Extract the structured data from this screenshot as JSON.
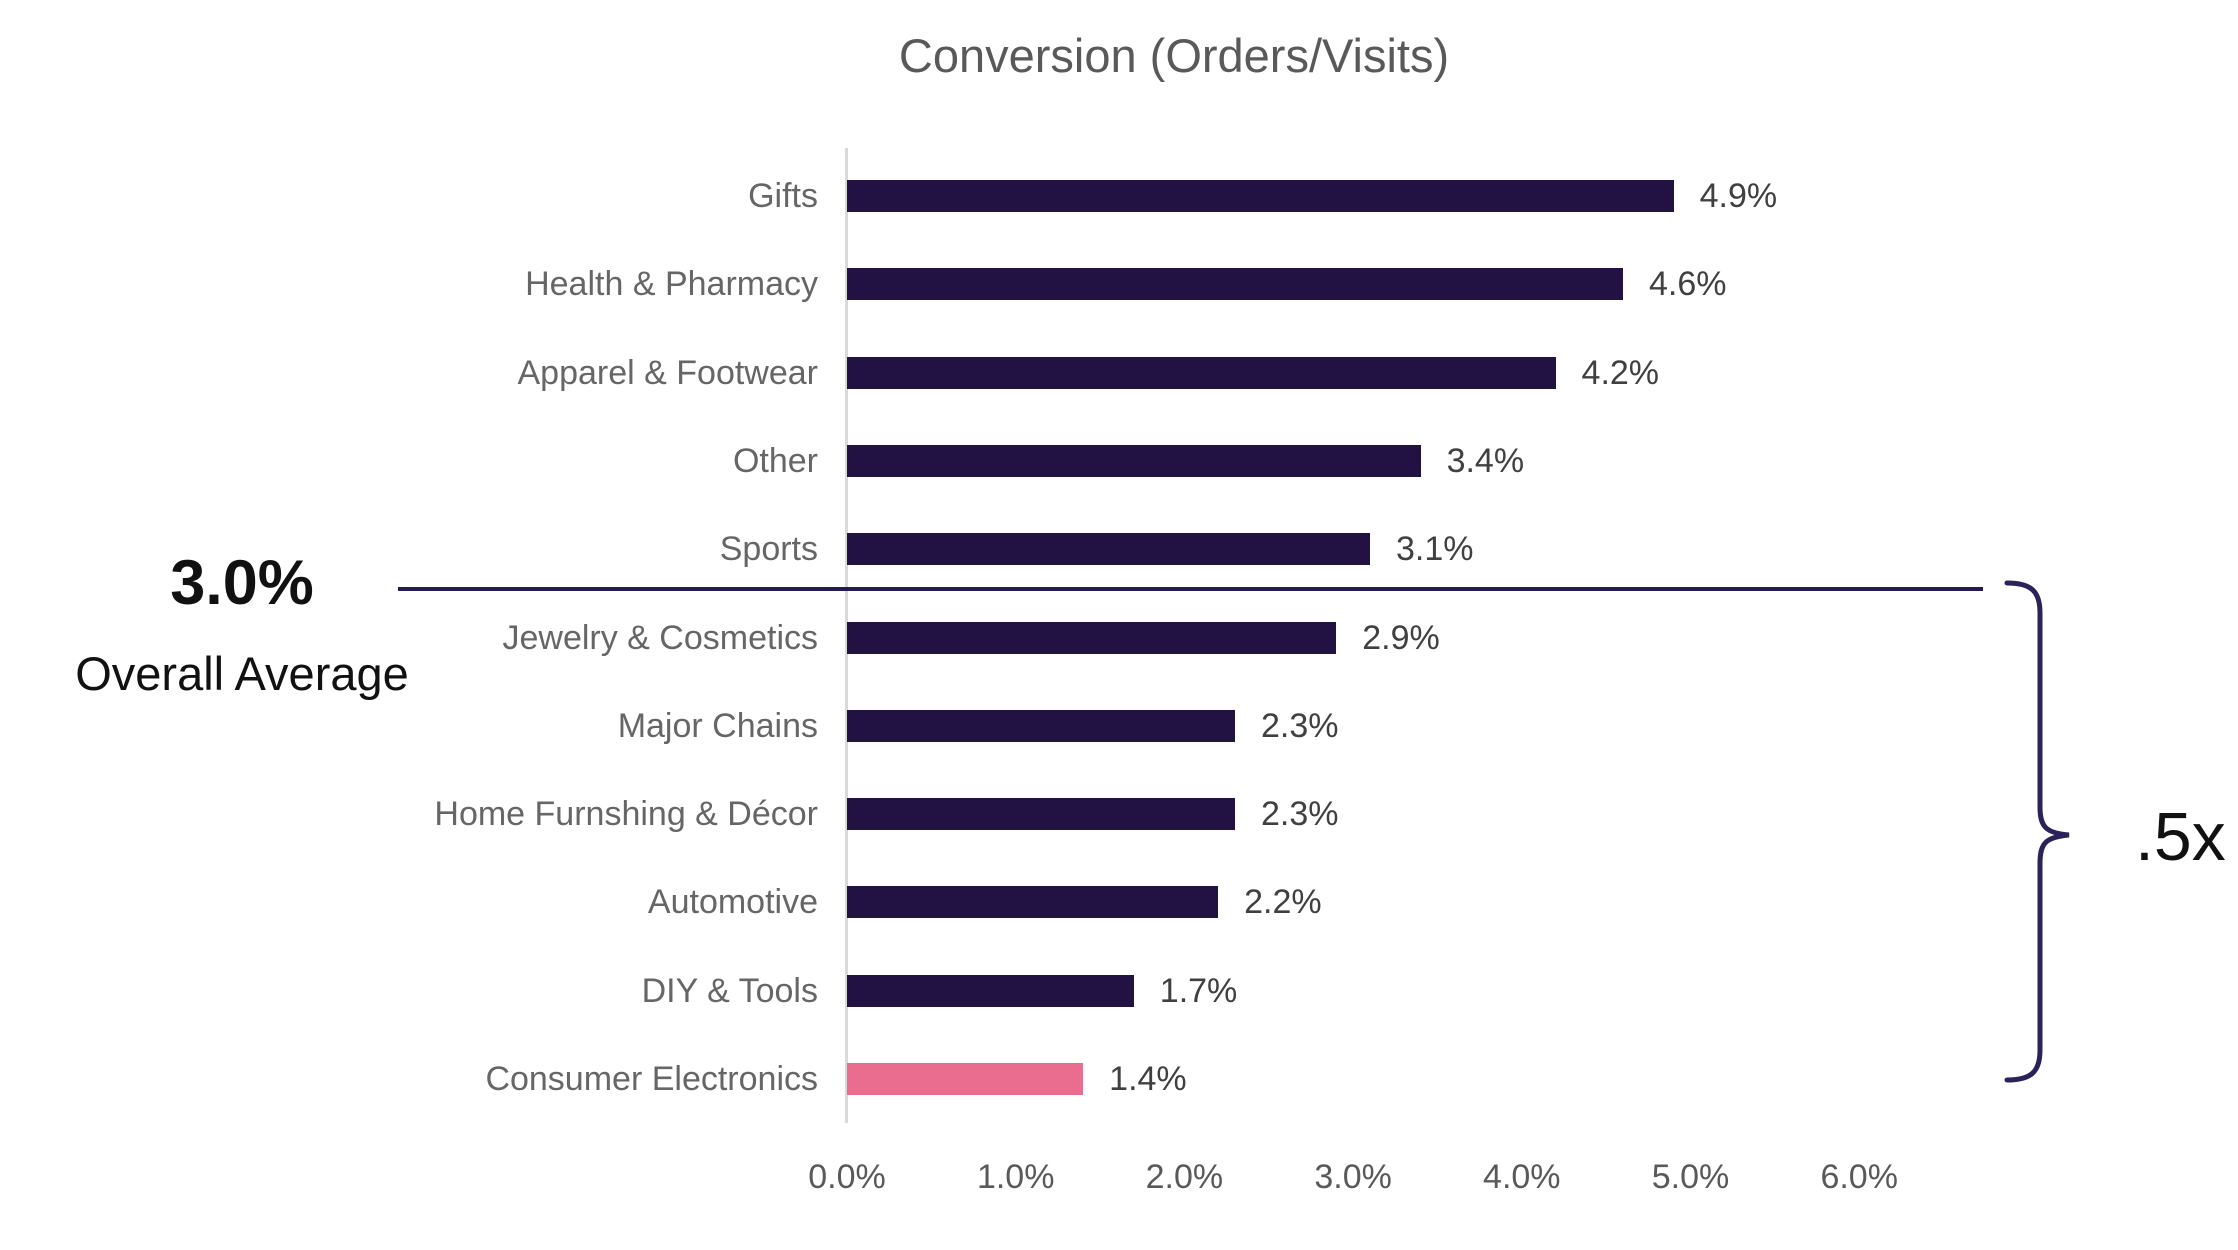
{
  "title": "Conversion (Orders/Visits)",
  "chart_data": {
    "type": "bar",
    "orientation": "horizontal",
    "title": "Conversion (Orders/Visits)",
    "categories": [
      "Gifts",
      "Health & Pharmacy",
      "Apparel & Footwear",
      "Other",
      "Sports",
      "Jewelry & Cosmetics",
      "Major Chains",
      "Home Furnshing & Décor",
      "Automotive",
      "DIY & Tools",
      "Consumer Electronics"
    ],
    "values": [
      4.9,
      4.6,
      4.2,
      3.4,
      3.1,
      2.9,
      2.3,
      2.3,
      2.2,
      1.7,
      1.4
    ],
    "value_labels": [
      "4.9%",
      "4.6%",
      "4.2%",
      "3.4%",
      "3.1%",
      "2.9%",
      "2.3%",
      "2.3%",
      "2.2%",
      "1.7%",
      "1.4%"
    ],
    "xlabel": "",
    "ylabel": "",
    "xlim": [
      0,
      6
    ],
    "x_ticks": [
      "0.0%",
      "1.0%",
      "2.0%",
      "3.0%",
      "4.0%",
      "5.0%",
      "6.0%"
    ],
    "x_tick_values": [
      0,
      1,
      2,
      3,
      4,
      5,
      6
    ],
    "grid": "off",
    "legend": "none",
    "highlight_category": "Consumer Electronics",
    "colors": {
      "bar": "#221244",
      "highlight_bar": "#ea6d90",
      "average_line": "#251a52",
      "brace": "#2c2159",
      "title_text": "#595959",
      "category_text": "#666666",
      "value_text": "#404040",
      "tick_text": "#595959",
      "axis_line": "#d9d9d9"
    },
    "annotations": {
      "average": {
        "value": "3.0%",
        "caption": "Overall Average",
        "at_value": 3.0
      },
      "brace": {
        "label": ".5x",
        "covers_categories": [
          "Jewelry & Cosmetics",
          "Major Chains",
          "Home Furnshing & Décor",
          "Automotive",
          "DIY & Tools",
          "Consumer Electronics"
        ]
      }
    }
  }
}
